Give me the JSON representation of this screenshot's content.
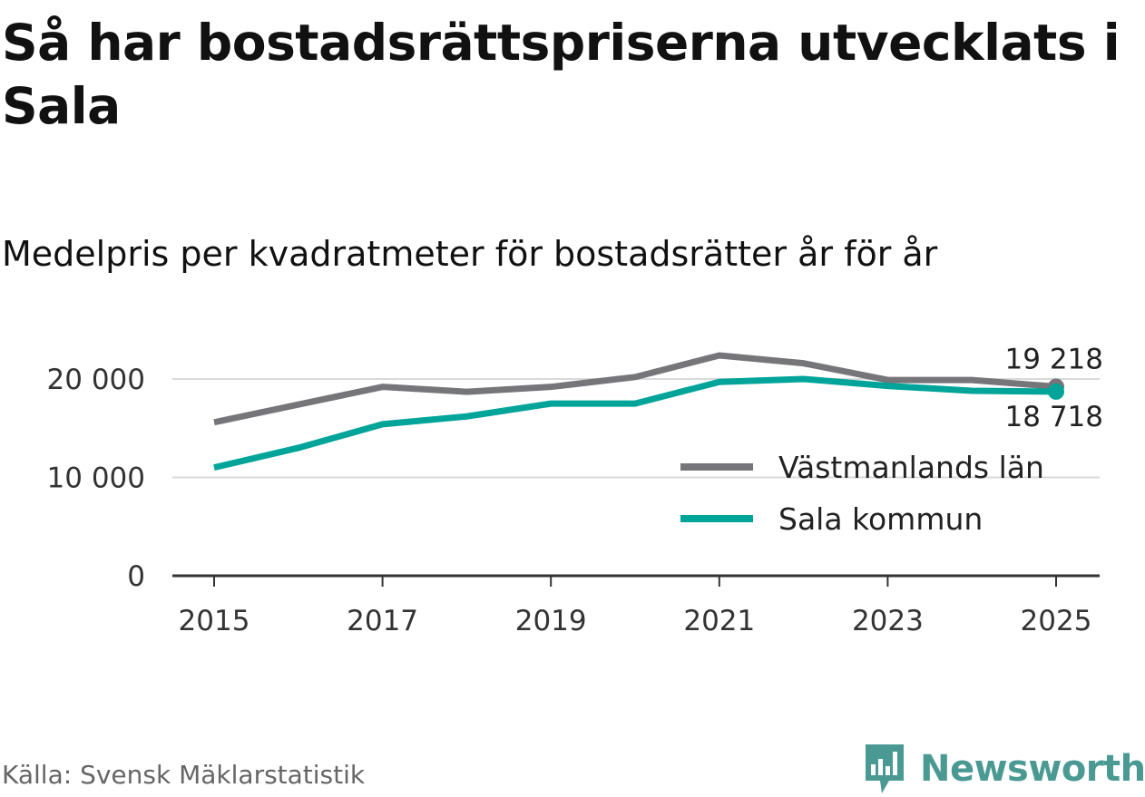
{
  "title": "Så har bostadsrättspriserna utvecklats i Sala",
  "subtitle": "Medelpris per kvadratmeter för bostadsrätter år för år",
  "source": "Källa: Svensk Mäklarstatistik",
  "brand": {
    "name": "Newsworthy",
    "icon": "newsworthy-logo-icon"
  },
  "colors": {
    "county": "#76757a",
    "municipality": "#00a499",
    "grid": "#d9d9d9",
    "axis": "#333333",
    "brand": "#4a9a93"
  },
  "chart_data": {
    "type": "line",
    "x": [
      2015,
      2016,
      2017,
      2018,
      2019,
      2020,
      2021,
      2022,
      2023,
      2024,
      2025
    ],
    "x_tick_labels": [
      "2015",
      "2017",
      "2019",
      "2021",
      "2023",
      "2025"
    ],
    "x_tick_values": [
      2015,
      2017,
      2019,
      2021,
      2023,
      2025
    ],
    "y_tick_labels": [
      "0",
      "10 000",
      "20 000"
    ],
    "y_tick_values": [
      0,
      10000,
      20000
    ],
    "ylim": [
      0,
      21000
    ],
    "xlim": [
      2015,
      2025
    ],
    "grid": true,
    "legend_position": "bottom-right",
    "series": [
      {
        "name": "Västmanlands län",
        "color": "#76757a",
        "values": [
          15600,
          17400,
          19200,
          18700,
          19200,
          20200,
          22400,
          21600,
          19900,
          19900,
          19218
        ],
        "end_label": "19 218"
      },
      {
        "name": "Sala kommun",
        "color": "#00a499",
        "values": [
          11000,
          13000,
          15400,
          16200,
          17500,
          17500,
          19700,
          20000,
          19300,
          18800,
          18718
        ],
        "end_label": "18 718"
      }
    ]
  }
}
